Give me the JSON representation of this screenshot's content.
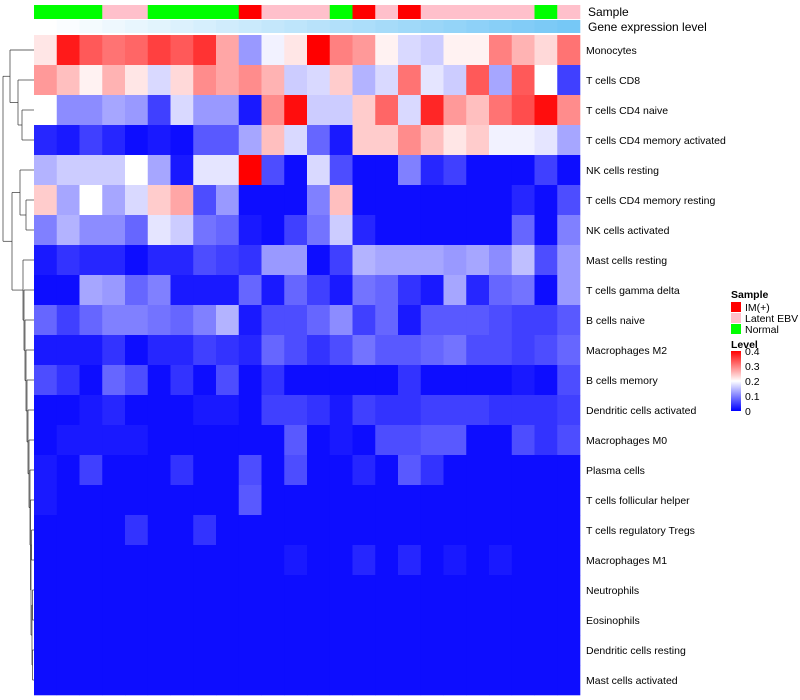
{
  "chart_data": {
    "type": "heatmap",
    "title": "",
    "annotation_tracks": [
      {
        "name": "Sample",
        "label": "Sample"
      },
      {
        "name": "Gene expression level",
        "label": "Gene expression level"
      }
    ],
    "sample_groups": [
      "Normal",
      "Normal",
      "Normal",
      "Latent EBV",
      "Latent EBV",
      "Normal",
      "Normal",
      "Normal",
      "Normal",
      "IM(+)",
      "Latent EBV",
      "Latent EBV",
      "Latent EBV",
      "Normal",
      "IM(+)",
      "Latent EBV",
      "IM(+)",
      "Latent EBV",
      "Latent EBV",
      "Latent EBV",
      "Latent EBV",
      "Latent EBV",
      "Normal",
      "Latent EBV"
    ],
    "gene_expression_colors": [
      "#ffffff",
      "#fafdff",
      "#f4fbfe",
      "#eef8fe",
      "#e8f6fe",
      "#e2f4fd",
      "#dcf1fd",
      "#d6effd",
      "#d0ecfc",
      "#caeafc",
      "#c4e7fb",
      "#bee5fb",
      "#b8e2fa",
      "#b2e0fa",
      "#acdefa",
      "#a6dbf9",
      "#a0d9f9",
      "#9ad6f8",
      "#94d4f8",
      "#8ed1f8",
      "#88cff7",
      "#82ccf7",
      "#7ccaf6",
      "#76c8f6"
    ],
    "rows": [
      "Monocytes",
      "T cells CD8",
      "T cells CD4 naive",
      "T cells CD4 memory activated",
      "NK cells resting",
      "T cells CD4 memory resting",
      "NK cells activated",
      "Mast cells resting",
      "T cells gamma delta",
      "B cells naive",
      "Macrophages M2",
      "B cells memory",
      "Dendritic cells activated",
      "Macrophages M0",
      "Plasma cells",
      "T cells follicular helper",
      "T cells regulatory  Tregs",
      "Macrophages M1",
      "Neutrophils",
      "Eosinophils",
      "Dendritic cells resting",
      "Mast cells activated"
    ],
    "values": [
      [
        0.22,
        0.38,
        0.33,
        0.31,
        0.32,
        0.35,
        0.33,
        0.36,
        0.27,
        0.12,
        0.19,
        0.22,
        0.4,
        0.3,
        0.28,
        0.21,
        0.17,
        0.16,
        0.21,
        0.21,
        0.3,
        0.26,
        0.23,
        0.31
      ],
      [
        0.28,
        0.25,
        0.21,
        0.26,
        0.22,
        0.17,
        0.23,
        0.29,
        0.27,
        0.29,
        0.26,
        0.16,
        0.17,
        0.24,
        0.14,
        0.17,
        0.31,
        0.18,
        0.16,
        0.33,
        0.13,
        0.33,
        0.2,
        0.05
      ],
      [
        0.2,
        0.11,
        0.11,
        0.13,
        0.12,
        0.05,
        0.17,
        0.12,
        0.12,
        0.02,
        0.29,
        0.39,
        0.16,
        0.16,
        0.24,
        0.32,
        0.17,
        0.37,
        0.28,
        0.25,
        0.31,
        0.34,
        0.39,
        0.29
      ],
      [
        0.03,
        0.02,
        0.05,
        0.03,
        0.01,
        0.02,
        0.01,
        0.07,
        0.07,
        0.13,
        0.25,
        0.17,
        0.08,
        0.02,
        0.24,
        0.24,
        0.29,
        0.25,
        0.22,
        0.24,
        0.19,
        0.19,
        0.18,
        0.13
      ],
      [
        0.14,
        0.16,
        0.16,
        0.16,
        0.2,
        0.13,
        0.02,
        0.18,
        0.18,
        0.4,
        0.06,
        0.01,
        0.17,
        0.06,
        0.01,
        0.01,
        0.1,
        0.03,
        0.05,
        0.01,
        0.01,
        0.01,
        0.05,
        0.01
      ],
      [
        0.24,
        0.13,
        0.2,
        0.13,
        0.17,
        0.24,
        0.27,
        0.06,
        0.12,
        0.01,
        0.01,
        0.01,
        0.1,
        0.25,
        0.01,
        0.01,
        0.01,
        0.01,
        0.01,
        0.01,
        0.01,
        0.03,
        0.01,
        0.06
      ],
      [
        0.1,
        0.14,
        0.11,
        0.11,
        0.08,
        0.18,
        0.16,
        0.09,
        0.08,
        0.02,
        0.01,
        0.05,
        0.09,
        0.16,
        0.03,
        0.01,
        0.01,
        0.01,
        0.01,
        0.01,
        0.01,
        0.08,
        0.01,
        0.1
      ],
      [
        0.02,
        0.04,
        0.03,
        0.03,
        0.01,
        0.03,
        0.03,
        0.06,
        0.05,
        0.04,
        0.12,
        0.12,
        0.01,
        0.05,
        0.14,
        0.13,
        0.13,
        0.13,
        0.12,
        0.13,
        0.11,
        0.15,
        0.06,
        0.12
      ],
      [
        0.01,
        0.01,
        0.13,
        0.12,
        0.08,
        0.1,
        0.02,
        0.02,
        0.02,
        0.08,
        0.02,
        0.08,
        0.05,
        0.02,
        0.09,
        0.08,
        0.04,
        0.02,
        0.13,
        0.03,
        0.08,
        0.09,
        0.01,
        0.12
      ],
      [
        0.08,
        0.05,
        0.08,
        0.1,
        0.1,
        0.09,
        0.08,
        0.1,
        0.14,
        0.02,
        0.06,
        0.06,
        0.08,
        0.11,
        0.05,
        0.08,
        0.02,
        0.07,
        0.07,
        0.07,
        0.06,
        0.05,
        0.05,
        0.07
      ],
      [
        0.02,
        0.02,
        0.02,
        0.04,
        0.01,
        0.03,
        0.03,
        0.05,
        0.04,
        0.03,
        0.08,
        0.06,
        0.04,
        0.06,
        0.09,
        0.07,
        0.07,
        0.08,
        0.09,
        0.06,
        0.06,
        0.05,
        0.06,
        0.08
      ],
      [
        0.06,
        0.04,
        0.01,
        0.08,
        0.06,
        0.01,
        0.04,
        0.01,
        0.06,
        0.01,
        0.04,
        0.01,
        0.01,
        0.01,
        0.01,
        0.01,
        0.04,
        0.01,
        0.01,
        0.01,
        0.01,
        0.02,
        0.01,
        0.06
      ],
      [
        0.01,
        0.01,
        0.02,
        0.03,
        0.01,
        0.01,
        0.01,
        0.02,
        0.02,
        0.01,
        0.05,
        0.05,
        0.04,
        0.02,
        0.05,
        0.04,
        0.04,
        0.05,
        0.05,
        0.05,
        0.04,
        0.04,
        0.04,
        0.05
      ],
      [
        0.01,
        0.02,
        0.02,
        0.02,
        0.02,
        0.01,
        0.01,
        0.01,
        0.01,
        0.01,
        0.01,
        0.07,
        0.01,
        0.02,
        0.01,
        0.06,
        0.06,
        0.07,
        0.07,
        0.01,
        0.01,
        0.06,
        0.04,
        0.06
      ],
      [
        0.02,
        0.01,
        0.05,
        0.01,
        0.01,
        0.01,
        0.04,
        0.01,
        0.01,
        0.06,
        0.01,
        0.06,
        0.01,
        0.01,
        0.03,
        0.01,
        0.07,
        0.04,
        0.01,
        0.01,
        0.01,
        0.01,
        0.01,
        0.01
      ],
      [
        0.02,
        0.01,
        0.01,
        0.01,
        0.01,
        0.01,
        0.01,
        0.01,
        0.01,
        0.07,
        0.01,
        0.01,
        0.01,
        0.01,
        0.01,
        0.01,
        0.01,
        0.01,
        0.01,
        0.01,
        0.01,
        0.01,
        0.01,
        0.01
      ],
      [
        0.01,
        0.01,
        0.01,
        0.01,
        0.04,
        0.01,
        0.01,
        0.04,
        0.01,
        0.01,
        0.01,
        0.01,
        0.01,
        0.01,
        0.01,
        0.01,
        0.01,
        0.01,
        0.01,
        0.01,
        0.01,
        0.01,
        0.01,
        0.01
      ],
      [
        0.01,
        0.01,
        0.01,
        0.01,
        0.01,
        0.01,
        0.01,
        0.01,
        0.01,
        0.01,
        0.01,
        0.02,
        0.01,
        0.01,
        0.03,
        0.01,
        0.03,
        0.01,
        0.02,
        0.01,
        0.02,
        0.01,
        0.01,
        0.01
      ],
      [
        0.01,
        0.01,
        0.01,
        0.01,
        0.01,
        0.01,
        0.01,
        0.01,
        0.01,
        0.01,
        0.01,
        0.01,
        0.01,
        0.01,
        0.01,
        0.01,
        0.01,
        0.01,
        0.01,
        0.01,
        0.01,
        0.01,
        0.01,
        0.01
      ],
      [
        0.01,
        0.01,
        0.01,
        0.01,
        0.01,
        0.01,
        0.01,
        0.01,
        0.01,
        0.01,
        0.01,
        0.01,
        0.01,
        0.01,
        0.01,
        0.01,
        0.01,
        0.01,
        0.01,
        0.01,
        0.01,
        0.01,
        0.01,
        0.01
      ],
      [
        0.01,
        0.01,
        0.01,
        0.01,
        0.01,
        0.01,
        0.01,
        0.01,
        0.01,
        0.01,
        0.01,
        0.01,
        0.01,
        0.01,
        0.01,
        0.01,
        0.01,
        0.01,
        0.01,
        0.01,
        0.01,
        0.01,
        0.01,
        0.01
      ],
      [
        0.01,
        0.01,
        0.01,
        0.01,
        0.01,
        0.01,
        0.01,
        0.01,
        0.01,
        0.01,
        0.01,
        0.01,
        0.01,
        0.01,
        0.01,
        0.01,
        0.01,
        0.01,
        0.01,
        0.01,
        0.01,
        0.01,
        0.01,
        0.01
      ]
    ],
    "dendrogram_leaf_order": [
      0,
      1,
      2,
      3,
      4,
      5,
      6,
      7,
      8,
      9,
      10,
      11,
      12,
      13,
      14,
      15,
      16,
      17,
      18,
      19,
      20,
      21
    ],
    "legend_sample": {
      "title": "Sample",
      "entries": [
        {
          "label": "IM(+)",
          "color": "#ff0000"
        },
        {
          "label": "Latent EBV",
          "color": "#ffc0cb"
        },
        {
          "label": "Normal",
          "color": "#00ff00"
        }
      ]
    },
    "legend_level": {
      "title": "Level",
      "ticks": [
        "0.4",
        "0.3",
        "0.2",
        "0.1",
        "0"
      ],
      "tick_values": [
        0.4,
        0.3,
        0.2,
        0.1,
        0
      ],
      "range": [
        0,
        0.4
      ],
      "colors": [
        "#0000ff",
        "#ffffff",
        "#ff0000"
      ]
    }
  }
}
